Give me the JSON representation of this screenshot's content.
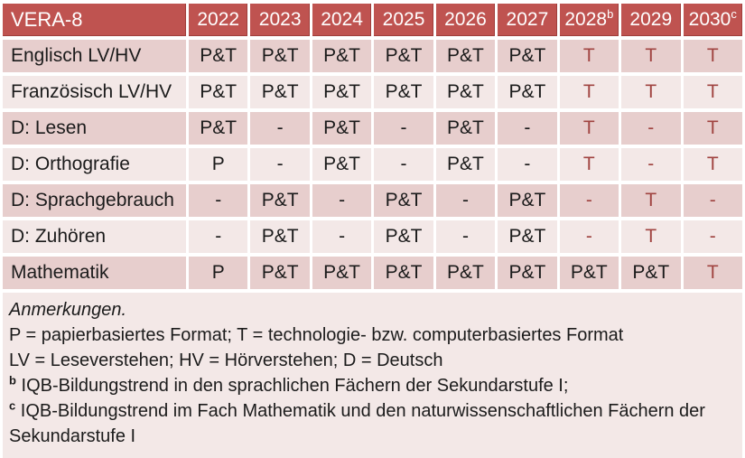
{
  "colors": {
    "header_bg": "#bf5350",
    "row_dark": "#e7cecd",
    "row_light": "#f3e8e7",
    "accent_text": "#a04441",
    "header_text": "#ffffff",
    "body_text": "#1b1b1b"
  },
  "table": {
    "title": "VERA-8",
    "columns": [
      {
        "label": "2022",
        "sup": ""
      },
      {
        "label": "2023",
        "sup": ""
      },
      {
        "label": "2024",
        "sup": ""
      },
      {
        "label": "2025",
        "sup": ""
      },
      {
        "label": "2026",
        "sup": ""
      },
      {
        "label": "2027",
        "sup": ""
      },
      {
        "label": "2028",
        "sup": "b"
      },
      {
        "label": "2029",
        "sup": ""
      },
      {
        "label": "2030",
        "sup": "c"
      }
    ],
    "rows": [
      {
        "label": "Englisch LV/HV",
        "cells": [
          {
            "text": "P&T",
            "accent": false
          },
          {
            "text": "P&T",
            "accent": false
          },
          {
            "text": "P&T",
            "accent": false
          },
          {
            "text": "P&T",
            "accent": false
          },
          {
            "text": "P&T",
            "accent": false
          },
          {
            "text": "P&T",
            "accent": false
          },
          {
            "text": "T",
            "accent": true
          },
          {
            "text": "T",
            "accent": true
          },
          {
            "text": "T",
            "accent": true
          }
        ]
      },
      {
        "label": "Französisch LV/HV",
        "cells": [
          {
            "text": "P&T",
            "accent": false
          },
          {
            "text": "P&T",
            "accent": false
          },
          {
            "text": "P&T",
            "accent": false
          },
          {
            "text": "P&T",
            "accent": false
          },
          {
            "text": "P&T",
            "accent": false
          },
          {
            "text": "P&T",
            "accent": false
          },
          {
            "text": "T",
            "accent": true
          },
          {
            "text": "T",
            "accent": true
          },
          {
            "text": "T",
            "accent": true
          }
        ]
      },
      {
        "label": "D: Lesen",
        "cells": [
          {
            "text": "P&T",
            "accent": false
          },
          {
            "text": "-",
            "accent": false
          },
          {
            "text": "P&T",
            "accent": false
          },
          {
            "text": "-",
            "accent": false
          },
          {
            "text": "P&T",
            "accent": false
          },
          {
            "text": "-",
            "accent": false
          },
          {
            "text": "T",
            "accent": true
          },
          {
            "text": "-",
            "accent": true
          },
          {
            "text": "T",
            "accent": true
          }
        ]
      },
      {
        "label": "D: Orthografie",
        "cells": [
          {
            "text": "P",
            "accent": false
          },
          {
            "text": "-",
            "accent": false
          },
          {
            "text": "P&T",
            "accent": false
          },
          {
            "text": "-",
            "accent": false
          },
          {
            "text": "P&T",
            "accent": false
          },
          {
            "text": "-",
            "accent": false
          },
          {
            "text": "T",
            "accent": true
          },
          {
            "text": "-",
            "accent": true
          },
          {
            "text": "T",
            "accent": true
          }
        ]
      },
      {
        "label": "D: Sprachgebrauch",
        "cells": [
          {
            "text": "-",
            "accent": false
          },
          {
            "text": "P&T",
            "accent": false
          },
          {
            "text": "-",
            "accent": false
          },
          {
            "text": "P&T",
            "accent": false
          },
          {
            "text": "-",
            "accent": false
          },
          {
            "text": "P&T",
            "accent": false
          },
          {
            "text": "-",
            "accent": true
          },
          {
            "text": "T",
            "accent": true
          },
          {
            "text": "-",
            "accent": true
          }
        ]
      },
      {
        "label": "D: Zuhören",
        "cells": [
          {
            "text": "-",
            "accent": false
          },
          {
            "text": "P&T",
            "accent": false
          },
          {
            "text": "-",
            "accent": false
          },
          {
            "text": "P&T",
            "accent": false
          },
          {
            "text": "-",
            "accent": false
          },
          {
            "text": "P&T",
            "accent": false
          },
          {
            "text": "-",
            "accent": true
          },
          {
            "text": "T",
            "accent": true
          },
          {
            "text": "-",
            "accent": true
          }
        ]
      },
      {
        "label": "Mathematik",
        "cells": [
          {
            "text": "P",
            "accent": false
          },
          {
            "text": "P&T",
            "accent": false
          },
          {
            "text": "P&T",
            "accent": false
          },
          {
            "text": "P&T",
            "accent": false
          },
          {
            "text": "P&T",
            "accent": false
          },
          {
            "text": "P&T",
            "accent": false
          },
          {
            "text": "P&T",
            "accent": false
          },
          {
            "text": "P&T",
            "accent": false
          },
          {
            "text": "T",
            "accent": true
          }
        ]
      }
    ]
  },
  "notes": {
    "title": "Anmerkungen.",
    "lines": [
      {
        "sup": "",
        "text": "P = papierbasiertes Format; T = technologie- bzw. computerbasiertes Format"
      },
      {
        "sup": "",
        "text": "LV = Leseverstehen; HV = Hörverstehen; D = Deutsch"
      },
      {
        "sup": "b",
        "text": "IQB-Bildungstrend in den sprachlichen Fächern der Sekundarstufe I;"
      },
      {
        "sup": "c",
        "text": "IQB-Bildungstrend im Fach Mathematik und den naturwissenschaftlichen Fächern der Sekundarstufe I"
      }
    ]
  }
}
